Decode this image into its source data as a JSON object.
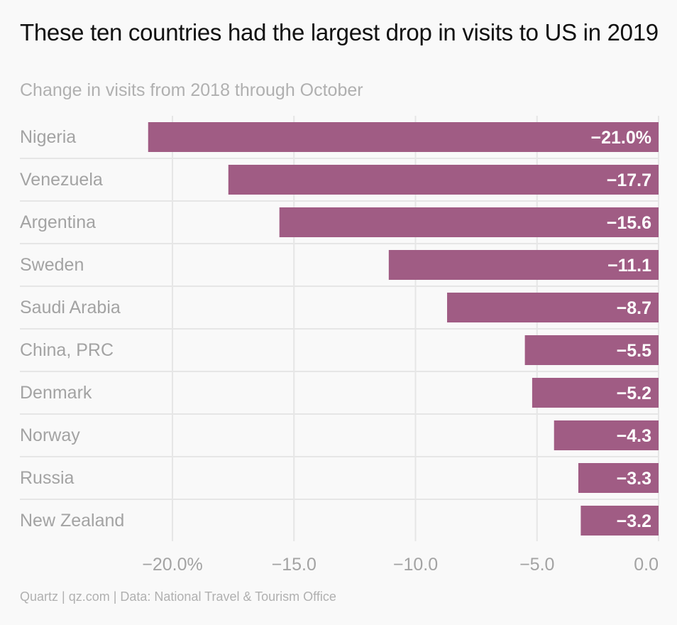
{
  "chart_data": {
    "type": "bar",
    "orientation": "horizontal",
    "title": "These ten countries had the largest drop in visits to US in 2019",
    "subtitle": "Change in visits from 2018 through October",
    "categories": [
      "Nigeria",
      "Venezuela",
      "Argentina",
      "Sweden",
      "Saudi Arabia",
      "China, PRC",
      "Denmark",
      "Norway",
      "Russia",
      "New Zealand"
    ],
    "values": [
      -21.0,
      -17.7,
      -15.6,
      -11.1,
      -8.7,
      -5.5,
      -5.2,
      -4.3,
      -3.3,
      -3.2
    ],
    "value_labels": [
      "−21.0%",
      "−17.7",
      "−15.6",
      "−11.1",
      "−8.7",
      "−5.5",
      "−5.2",
      "−4.3",
      "−3.3",
      "−3.2"
    ],
    "xlim": [
      -22,
      0
    ],
    "x_ticks": [
      -20,
      -15,
      -10,
      -5,
      0
    ],
    "x_tick_labels": [
      "−20.0%",
      "−15.0",
      "−10.0",
      "−5.0",
      "0.0"
    ],
    "grid": true,
    "bar_color": "#a05c84",
    "source": "Quartz | qz.com | Data: National Travel & Tourism Office"
  }
}
